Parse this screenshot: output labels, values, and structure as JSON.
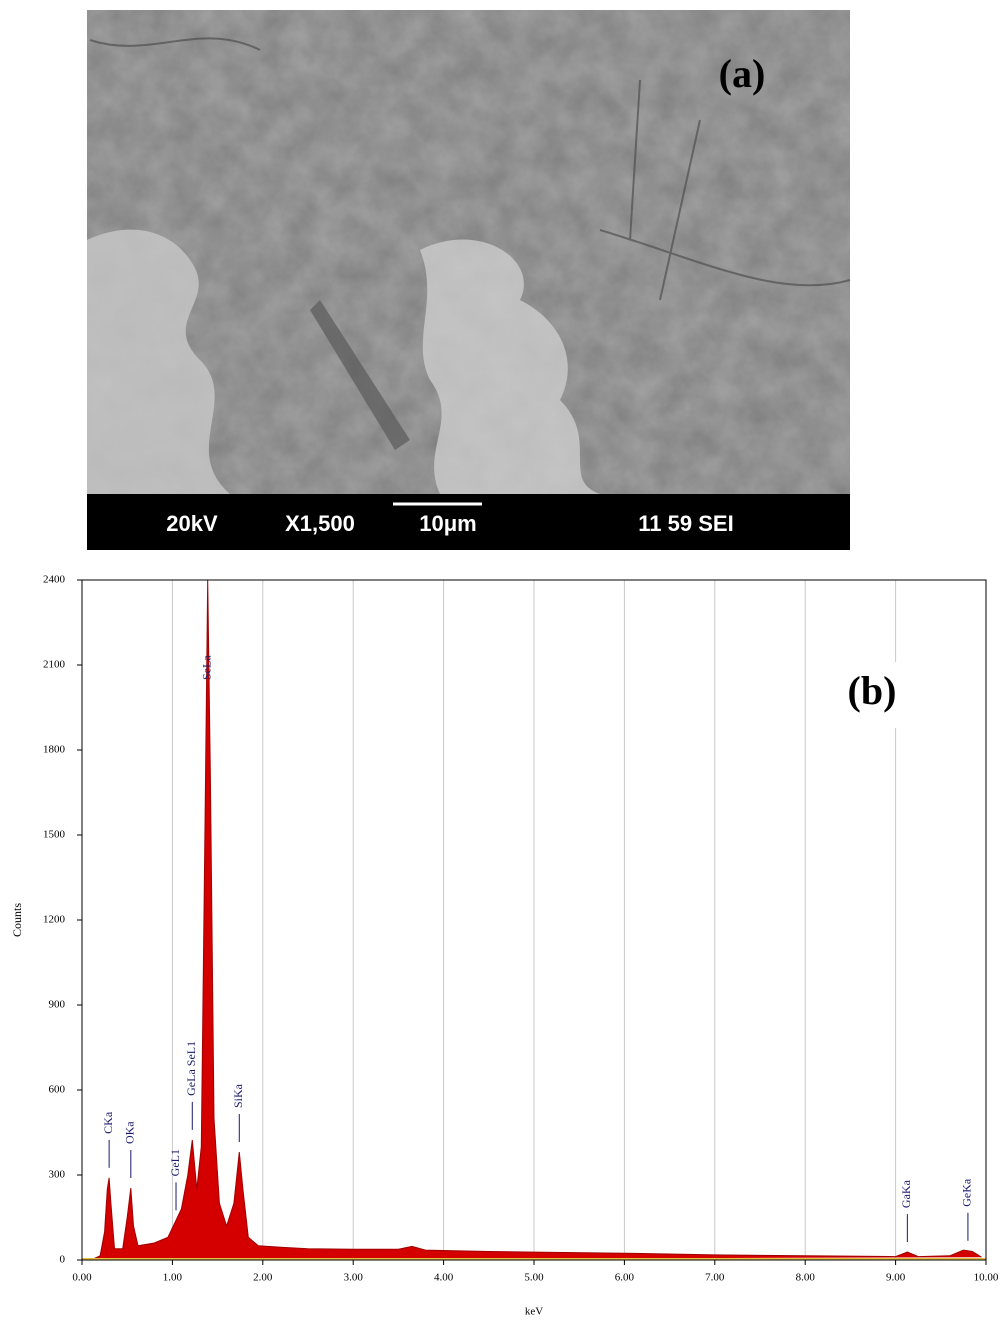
{
  "panel_a": {
    "label": "(a)",
    "info_bar": [
      "20kV",
      "X1,500",
      "10μm",
      "11 59 SEI"
    ]
  },
  "chart_data": {
    "type": "area",
    "panel_label": "(b)",
    "x_label": "keV",
    "y_label": "Counts",
    "color": "#d40000",
    "grid": "x",
    "xlim": [
      0,
      10
    ],
    "ylim": [
      0,
      2400
    ],
    "xticks": [
      {
        "value": 0,
        "label": "0.00"
      },
      {
        "value": 1,
        "label": "1.00"
      },
      {
        "value": 2,
        "label": "2.00"
      },
      {
        "value": 3,
        "label": "3.00"
      },
      {
        "value": 4,
        "label": "4.00"
      },
      {
        "value": 5,
        "label": "5.00"
      },
      {
        "value": 6,
        "label": "6.00"
      },
      {
        "value": 7,
        "label": "7.00"
      },
      {
        "value": 8,
        "label": "8.00"
      },
      {
        "value": 9,
        "label": "9.00"
      },
      {
        "value": 10,
        "label": "10.00"
      }
    ],
    "yticks": [
      0,
      300,
      600,
      900,
      1200,
      1500,
      1800,
      2100,
      2400
    ],
    "x": [
      0.1,
      0.2,
      0.25,
      0.28,
      0.3,
      0.32,
      0.36,
      0.45,
      0.5,
      0.54,
      0.57,
      0.62,
      0.8,
      0.95,
      1.04,
      1.1,
      1.17,
      1.22,
      1.27,
      1.32,
      1.36,
      1.39,
      1.42,
      1.46,
      1.52,
      1.6,
      1.68,
      1.74,
      1.78,
      1.84,
      1.95,
      2.2,
      2.5,
      3.0,
      3.5,
      3.65,
      3.8,
      4.5,
      5.0,
      6.0,
      7.0,
      8.0,
      9.0,
      9.13,
      9.25,
      9.6,
      9.75,
      9.85,
      9.95
    ],
    "values": [
      0,
      15,
      100,
      250,
      290,
      200,
      40,
      40,
      150,
      254,
      120,
      50,
      60,
      80,
      140,
      180,
      300,
      424,
      250,
      400,
      1500,
      2400,
      1700,
      500,
      200,
      120,
      200,
      381,
      250,
      80,
      50,
      45,
      40,
      38,
      38,
      48,
      35,
      30,
      28,
      24,
      18,
      15,
      12,
      28,
      12,
      15,
      35,
      30,
      10
    ],
    "peak_label_color": "#1a1a6e",
    "peaks": [
      {
        "label": "CKa",
        "x": 0.3
      },
      {
        "label": "OKa",
        "x": 0.54
      },
      {
        "label": "GeL1",
        "x": 1.04
      },
      {
        "label": "GeLa SeL1",
        "x": 1.22
      },
      {
        "label": "SeLa",
        "x": 1.39
      },
      {
        "label": "SiKa",
        "x": 1.74
      },
      {
        "label": "GaKa",
        "x": 9.13
      },
      {
        "label": "GeKa",
        "x": 9.8
      }
    ]
  }
}
